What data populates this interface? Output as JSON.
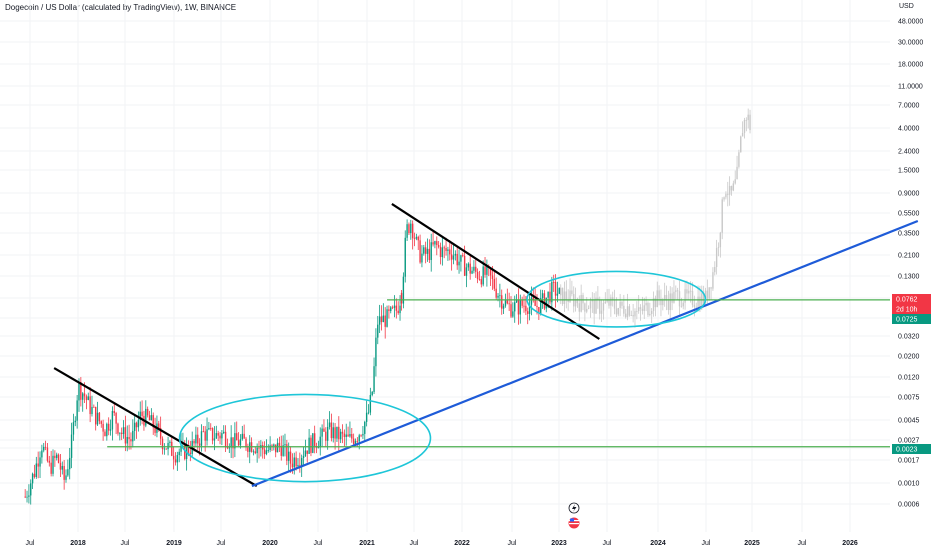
{
  "header": {
    "title": "Dogecoin / US Dollar (calculated by TradingView), 1W, BINANCE",
    "currency": "USD"
  },
  "chart_data": {
    "type": "candlestick",
    "scale": "log",
    "yticks": [
      "48.0000",
      "30.0000",
      "18.0000",
      "11.0000",
      "7.0000",
      "4.0000",
      "2.4000",
      "1.5000",
      "0.9000",
      "0.5500",
      "0.3500",
      "0.2100",
      "0.1300",
      "0.0762",
      "0.0725",
      "0.0320",
      "0.0200",
      "0.0120",
      "0.0075",
      "0.0045",
      "0.0027",
      "0.0023",
      "0.0017",
      "0.0010",
      "0.0006"
    ],
    "xticks": [
      "Jul",
      "2018",
      "Jul",
      "2019",
      "Jul",
      "2020",
      "Jul",
      "2021",
      "Jul",
      "2022",
      "Jul",
      "2023",
      "Jul",
      "2024",
      "Jul",
      "2025",
      "Jul",
      "2026"
    ],
    "price_tags": [
      {
        "value": "0.0762",
        "color": "#f23645"
      },
      {
        "value": "2d 10h",
        "color": "#f23645"
      },
      {
        "value": "0.0725",
        "color": "#089981"
      },
      {
        "value": "0.0023",
        "color": "#089981"
      }
    ],
    "series": [
      {
        "style": "candles",
        "years": [
          2017.45,
          2021.35
        ],
        "points": [
          [
            2017.45,
            0.0007
          ],
          [
            2017.55,
            0.0013
          ],
          [
            2017.62,
            0.0025
          ],
          [
            2017.7,
            0.0014
          ],
          [
            2017.78,
            0.0018
          ],
          [
            2017.86,
            0.001
          ],
          [
            2017.93,
            0.0025
          ],
          [
            2018.0,
            0.01
          ],
          [
            2018.06,
            0.008
          ],
          [
            2018.12,
            0.006
          ],
          [
            2018.2,
            0.0045
          ],
          [
            2018.28,
            0.0035
          ],
          [
            2018.36,
            0.005
          ],
          [
            2018.45,
            0.0032
          ],
          [
            2018.55,
            0.0027
          ],
          [
            2018.65,
            0.005
          ],
          [
            2018.72,
            0.0045
          ],
          [
            2018.8,
            0.0036
          ],
          [
            2018.9,
            0.0024
          ],
          [
            2019.0,
            0.002
          ],
          [
            2019.1,
            0.0021
          ],
          [
            2019.2,
            0.0024
          ],
          [
            2019.3,
            0.0032
          ],
          [
            2019.4,
            0.003
          ],
          [
            2019.5,
            0.0031
          ],
          [
            2019.6,
            0.0026
          ],
          [
            2019.7,
            0.0026
          ],
          [
            2019.8,
            0.0025
          ],
          [
            2019.9,
            0.0022
          ],
          [
            2020.0,
            0.0021
          ],
          [
            2020.1,
            0.0024
          ],
          [
            2020.2,
            0.0016
          ],
          [
            2020.3,
            0.0019
          ],
          [
            2020.4,
            0.0025
          ],
          [
            2020.5,
            0.0028
          ],
          [
            2020.6,
            0.0034
          ],
          [
            2020.7,
            0.003
          ],
          [
            2020.8,
            0.0027
          ],
          [
            2020.9,
            0.0031
          ],
          [
            2021.0,
            0.0047
          ],
          [
            2021.05,
            0.009
          ],
          [
            2021.1,
            0.045
          ],
          [
            2021.2,
            0.05
          ],
          [
            2021.3,
            0.06
          ],
          [
            2021.35,
            0.09
          ]
        ]
      },
      {
        "style": "candles",
        "years": [
          2021.35,
          2023.0
        ],
        "points": [
          [
            2021.35,
            0.09
          ],
          [
            2021.4,
            0.4
          ],
          [
            2021.45,
            0.5
          ],
          [
            2021.5,
            0.3
          ],
          [
            2021.55,
            0.22
          ],
          [
            2021.62,
            0.23
          ],
          [
            2021.7,
            0.28
          ],
          [
            2021.78,
            0.24
          ],
          [
            2021.86,
            0.25
          ],
          [
            2021.95,
            0.19
          ],
          [
            2022.05,
            0.16
          ],
          [
            2022.15,
            0.14
          ],
          [
            2022.25,
            0.14
          ],
          [
            2022.35,
            0.09
          ],
          [
            2022.45,
            0.065
          ],
          [
            2022.55,
            0.065
          ],
          [
            2022.65,
            0.07
          ],
          [
            2022.75,
            0.065
          ],
          [
            2022.85,
            0.08
          ],
          [
            2022.92,
            0.1
          ],
          [
            2023.0,
            0.085
          ]
        ]
      },
      {
        "style": "ghost",
        "years": [
          2023.0,
          2024.98
        ],
        "points": [
          [
            2023.0,
            0.085
          ],
          [
            2023.1,
            0.08
          ],
          [
            2023.25,
            0.07
          ],
          [
            2023.4,
            0.065
          ],
          [
            2023.5,
            0.07
          ],
          [
            2023.6,
            0.063
          ],
          [
            2023.7,
            0.065
          ],
          [
            2023.8,
            0.055
          ],
          [
            2023.9,
            0.065
          ],
          [
            2024.0,
            0.08
          ],
          [
            2024.1,
            0.075
          ],
          [
            2024.2,
            0.085
          ],
          [
            2024.3,
            0.08
          ],
          [
            2024.4,
            0.078
          ],
          [
            2024.5,
            0.08
          ],
          [
            2024.58,
            0.15
          ],
          [
            2024.64,
            0.35
          ],
          [
            2024.7,
            1.2
          ],
          [
            2024.76,
            0.9
          ],
          [
            2024.82,
            1.3
          ],
          [
            2024.88,
            4.5
          ],
          [
            2024.93,
            6.5
          ],
          [
            2024.98,
            4.0
          ]
        ]
      }
    ],
    "annotations": [
      {
        "type": "trendline",
        "color": "#000000",
        "from": [
          2017.75,
          0.015
        ],
        "to": [
          2019.85,
          0.0009
        ]
      },
      {
        "type": "trendline",
        "color": "#000000",
        "from": [
          2021.25,
          0.75
        ],
        "to": [
          2023.4,
          0.03
        ]
      },
      {
        "type": "trendline",
        "color": "#1e5bd8",
        "from": [
          2019.8,
          0.0009
        ],
        "to": [
          2026.7,
          0.5
        ]
      },
      {
        "type": "hline",
        "color": "#4caf50",
        "value": 0.0023
      },
      {
        "type": "hline",
        "color": "#4caf50",
        "value": 0.0762
      },
      {
        "type": "ellipse",
        "color": "#1ec6d8",
        "x": [
          2019.05,
          2021.65
        ],
        "y": [
          0.001,
          0.008
        ]
      },
      {
        "type": "ellipse",
        "color": "#1ec6d8",
        "x": [
          2022.65,
          2024.5
        ],
        "y": [
          0.04,
          0.15
        ]
      }
    ]
  }
}
